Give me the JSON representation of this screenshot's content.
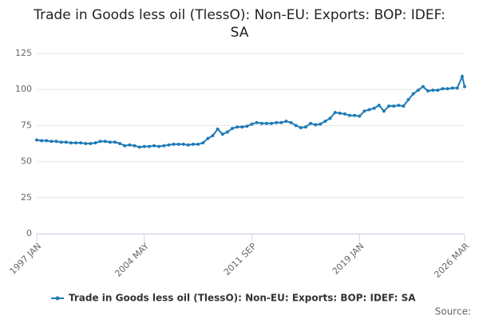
{
  "chart_data": {
    "type": "line",
    "title": "Trade in Goods less oil (TlessO): Non-EU: Exports: BOP: IDEF: SA",
    "source": "Source:",
    "grid": true,
    "legend": "bottom",
    "xlim": [
      "1997 JAN",
      "2026 MAR"
    ],
    "xticks": [
      "1997 JAN",
      "2004 MAY",
      "2011 SEP",
      "2019 JAN",
      "2026 MAR"
    ],
    "ylim": [
      0,
      125
    ],
    "yticks": [
      0,
      25,
      50,
      75,
      100,
      125
    ],
    "x": [
      "1997 JAN",
      "1997 MAY",
      "1997 SEP",
      "1998 JAN",
      "1998 MAY",
      "1998 SEP",
      "1999 JAN",
      "1999 MAY",
      "1999 SEP",
      "2000 JAN",
      "2000 MAY",
      "2000 SEP",
      "2001 JAN",
      "2001 MAY",
      "2001 SEP",
      "2002 JAN",
      "2002 MAY",
      "2002 SEP",
      "2003 JAN",
      "2003 MAY",
      "2003 SEP",
      "2004 JAN",
      "2004 MAY",
      "2004 SEP",
      "2005 JAN",
      "2005 MAY",
      "2005 SEP",
      "2006 JAN",
      "2006 MAY",
      "2006 SEP",
      "2007 JAN",
      "2007 MAY",
      "2007 SEP",
      "2008 JAN",
      "2008 MAY",
      "2008 SEP",
      "2009 JAN",
      "2009 MAY",
      "2009 SEP",
      "2010 JAN",
      "2010 MAY",
      "2010 SEP",
      "2011 JAN",
      "2011 MAY",
      "2011 SEP",
      "2012 JAN",
      "2012 MAY",
      "2012 SEP",
      "2013 JAN",
      "2013 MAY",
      "2013 SEP",
      "2014 JAN",
      "2014 MAY",
      "2014 SEP",
      "2015 JAN",
      "2015 MAY",
      "2015 SEP",
      "2016 JAN",
      "2016 MAY",
      "2016 SEP",
      "2017 JAN",
      "2017 MAY",
      "2017 SEP",
      "2018 JAN",
      "2018 MAY",
      "2018 SEP",
      "2019 JAN",
      "2019 MAY",
      "2019 SEP",
      "2020 JAN",
      "2020 MAY",
      "2020 SEP",
      "2021 JAN",
      "2021 MAY",
      "2021 SEP",
      "2022 JAN",
      "2022 MAY",
      "2022 SEP",
      "2023 JAN",
      "2023 MAY",
      "2023 SEP",
      "2024 JAN",
      "2024 MAY",
      "2024 SEP",
      "2025 JAN",
      "2025 MAY",
      "2025 SEP",
      "2026 JAN",
      "2026 MAR"
    ],
    "series": [
      {
        "name": "Trade in Goods less oil (TlessO): Non-EU: Exports: BOP: IDEF: SA",
        "color": "#1f7bb6",
        "values": [
          65,
          64.5,
          64.5,
          64,
          64,
          63.5,
          63.5,
          63,
          63,
          63,
          62.5,
          62.5,
          63,
          64,
          64,
          63.5,
          63.5,
          62.5,
          61,
          61.5,
          61,
          60,
          60.5,
          60.5,
          61,
          60.5,
          61,
          61.5,
          62,
          62,
          62,
          61.5,
          62,
          62,
          63,
          66,
          68,
          72.5,
          69,
          70.5,
          73,
          74,
          74,
          74.5,
          76,
          77,
          76.5,
          76.5,
          76.5,
          77,
          77,
          78,
          77,
          75,
          73.5,
          74,
          76.5,
          75.5,
          76,
          78,
          80,
          84,
          83.5,
          83,
          82,
          82,
          81.5,
          85,
          86,
          87,
          89,
          85,
          88.5,
          88.5,
          89,
          88.5,
          93,
          97,
          99.5,
          102,
          99,
          99.5,
          99.5,
          100.5,
          100.5,
          101,
          101,
          109,
          102
        ]
      }
    ]
  }
}
